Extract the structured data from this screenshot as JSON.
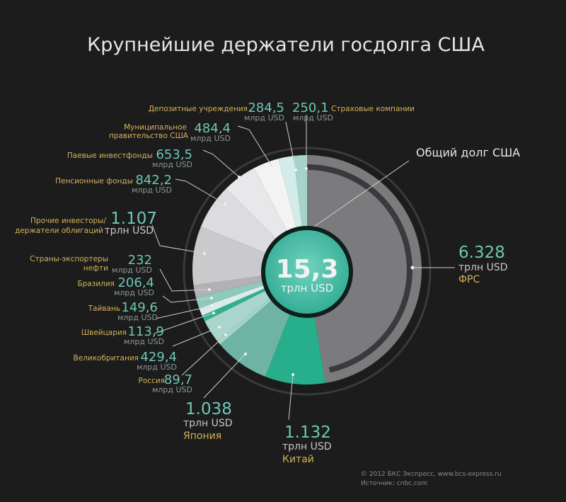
{
  "title": "Крупнейшие держатели госдолга США",
  "center": {
    "value": "15,3",
    "unit": "трлн USD"
  },
  "total_label": "Общий долг США",
  "footer": {
    "copyright": "© 2012 БКС Экспресс, www.bcs-express.ru",
    "source": "Источник: cnbc.com"
  },
  "colors": {
    "background": "#1c1c1c",
    "value_text": "#6cc8b4",
    "category_text": "#d4b25a",
    "fed_slice": "#7b7b7d",
    "china_slice": "#27ae8a",
    "center_circle": "#3cb89f"
  },
  "chart_data": {
    "type": "pie",
    "title": "Крупнейшие держатели госдолга США",
    "total": 15.3,
    "total_unit": "трлн USD",
    "slices": [
      {
        "label": "ФРС",
        "value": 6328,
        "display": "6.328",
        "unit": "трлн USD",
        "color": "#7b7b7d"
      },
      {
        "label": "Китай",
        "value": 1132,
        "display": "1.132",
        "unit": "трлн USD",
        "color": "#27ae8a"
      },
      {
        "label": "Япония",
        "value": 1038,
        "display": "1.038",
        "unit": "трлн USD",
        "color": "#6fb3a4"
      },
      {
        "label": "Россия",
        "value": 89.7,
        "display": "89,7",
        "unit": "млрд USD",
        "color": "#9fd6cb"
      },
      {
        "label": "Великобритания",
        "value": 429.4,
        "display": "429,4",
        "unit": "млрд USD",
        "color": "#a9d5cc"
      },
      {
        "label": "Швейцария",
        "value": 113.9,
        "display": "113,9",
        "unit": "млрд USD",
        "color": "#2fb08d"
      },
      {
        "label": "Тайвань",
        "value": 149.6,
        "display": "149,6",
        "unit": "млрд USD",
        "color": "#d9ecea"
      },
      {
        "label": "Бразилия",
        "value": 206.4,
        "display": "206,4",
        "unit": "млрд USD",
        "color": "#8ec9bb"
      },
      {
        "label": "Страны-экспортеры нефти",
        "value": 232,
        "display": "232",
        "unit": "млрд USD",
        "color": "#b4b0b4"
      },
      {
        "label": "Прочие инвесторы/ держатели облигаций",
        "value": 1107,
        "display": "1.107",
        "unit": "трлн USD",
        "color": "#cacacc"
      },
      {
        "label": "Пенсионные фонды",
        "value": 842.2,
        "display": "842,2",
        "unit": "млрд USD",
        "color": "#dcdcde"
      },
      {
        "label": "Паевые инвестфонды",
        "value": 653.5,
        "display": "653,5",
        "unit": "млрд USD",
        "color": "#e8e8ea"
      },
      {
        "label": "Муниципальное правительство США",
        "value": 484.4,
        "display": "484,4",
        "unit": "млрд USD",
        "color": "#f3f3f3"
      },
      {
        "label": "Депозитные учреждения",
        "value": 284.5,
        "display": "284,5",
        "unit": "млрд USD",
        "color": "#d3ecea"
      },
      {
        "label": "Страховые компании",
        "value": 250.1,
        "display": "250,1",
        "unit": "млрд USD",
        "color": "#a6d4cb"
      }
    ]
  },
  "labels": {
    "insurance": {
      "cat": "Страховые компании",
      "val": "250,1",
      "unit": "млрд USD"
    },
    "deposit": {
      "cat": "Депозитные учреждения",
      "val": "284,5",
      "unit": "млрд USD"
    },
    "municipal": {
      "cat1": "Муниципальное",
      "cat2": "правительство США",
      "val": "484,4",
      "unit": "млрд USD"
    },
    "mutual": {
      "cat": "Паевые инвестфонды",
      "val": "653,5",
      "unit": "млрд USD"
    },
    "pension": {
      "cat": "Пенсионные фонды",
      "val": "842,2",
      "unit": "млрд USD"
    },
    "other": {
      "cat1": "Прочие инвесторы/",
      "cat2": "держатели облигаций",
      "val": "1.107",
      "unit": "трлн USD"
    },
    "oil": {
      "cat1": "Страны-экспортеры",
      "cat2": "нефти",
      "val": "232",
      "unit": "млрд USD"
    },
    "brazil": {
      "cat": "Бразилия",
      "val": "206,4",
      "unit": "млрд USD"
    },
    "taiwan": {
      "cat": "Тайвань",
      "val": "149,6",
      "unit": "млрд USD"
    },
    "swiss": {
      "cat": "Швейцария",
      "val": "113,9",
      "unit": "млрд USD"
    },
    "uk": {
      "cat": "Великобритания",
      "val": "429,4",
      "unit": "млрд USD"
    },
    "russia": {
      "cat": "Россия",
      "val": "89,7",
      "unit": "млрд USD"
    },
    "japan": {
      "cat": "Япония",
      "val": "1.038",
      "unit": "трлн USD"
    },
    "china": {
      "cat": "Китай",
      "val": "1.132",
      "unit": "трлн USD"
    },
    "fed": {
      "cat": "ФРС",
      "val": "6.328",
      "unit": "трлн USD"
    }
  }
}
